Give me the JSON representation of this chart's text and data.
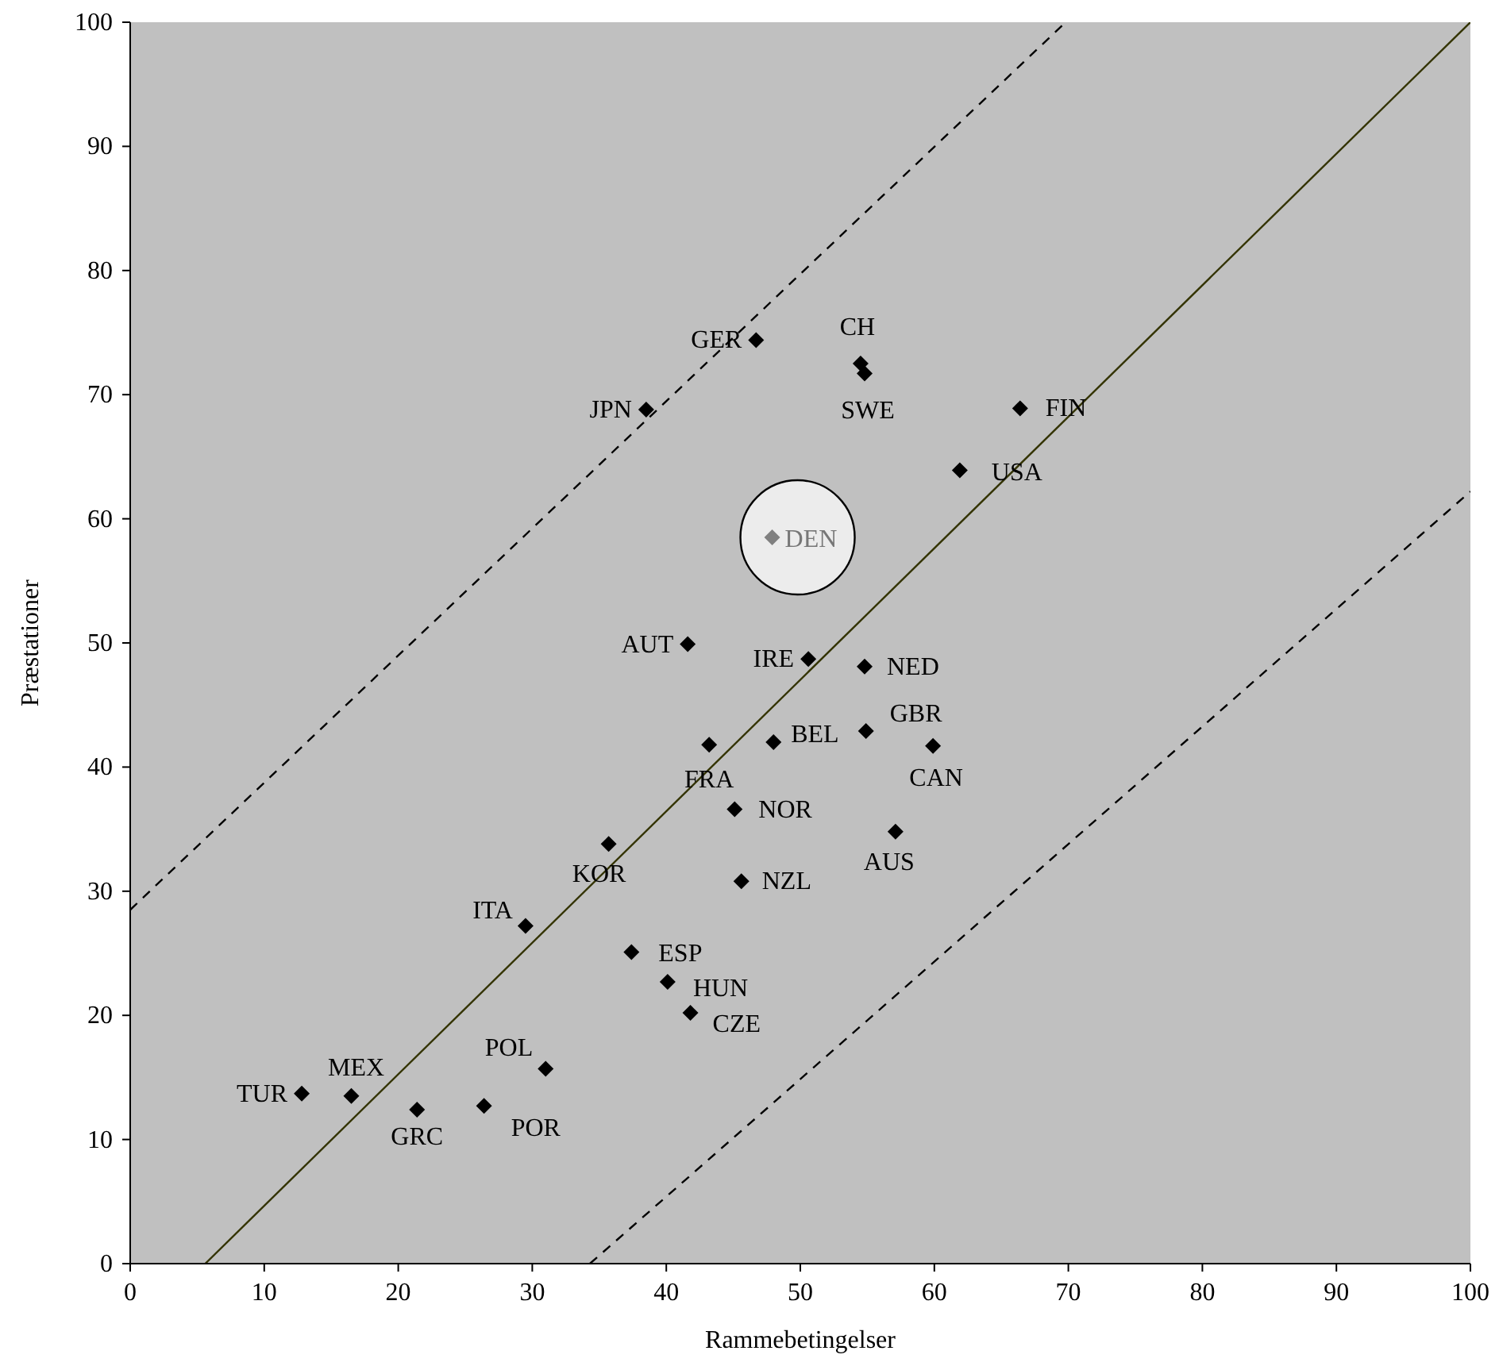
{
  "chart_data": {
    "type": "scatter",
    "xlabel": "Rammebetingelser",
    "ylabel": "Præstationer",
    "xlim": [
      0,
      100
    ],
    "ylim": [
      0,
      100
    ],
    "xticks": [
      0,
      10,
      20,
      30,
      40,
      50,
      60,
      70,
      80,
      90,
      100
    ],
    "yticks": [
      0,
      10,
      20,
      30,
      40,
      50,
      60,
      70,
      80,
      90,
      100
    ],
    "grid": false,
    "series": [
      {
        "type": "scatter",
        "color": "#000000",
        "marker": "diamond",
        "x": [
          46.7,
          54.5,
          54.8,
          38.5,
          66.4,
          61.9,
          47.9,
          41.6,
          50.6,
          54.8,
          48.0,
          54.9,
          43.2,
          59.9,
          45.1,
          57.1,
          35.7,
          45.6,
          29.5,
          37.4,
          40.1,
          41.8,
          31.0,
          12.8,
          16.5,
          21.4,
          26.4
        ],
        "values": [
          74.4,
          72.5,
          71.7,
          68.8,
          68.9,
          63.9,
          58.5,
          49.9,
          48.7,
          48.1,
          42.0,
          42.9,
          41.8,
          41.7,
          36.6,
          34.8,
          33.8,
          30.8,
          27.2,
          25.1,
          22.7,
          20.2,
          15.7,
          13.7,
          13.5,
          12.4,
          12.7
        ],
        "colors": [
          "#000000",
          "#000000",
          "#000000",
          "#000000",
          "#000000",
          "#000000",
          "#808080",
          "#000000",
          "#000000",
          "#000000",
          "#000000",
          "#000000",
          "#000000",
          "#000000",
          "#000000",
          "#000000",
          "#000000",
          "#000000",
          "#000000",
          "#000000",
          "#000000",
          "#000000",
          "#000000",
          "#000000",
          "#000000",
          "#000000",
          "#000000"
        ]
      },
      {
        "type": "line",
        "color": "#333300",
        "line_style": "solid",
        "marker": "none",
        "x": [
          5.6,
          100
        ],
        "values": [
          0,
          100
        ]
      },
      {
        "type": "line",
        "color": "#000000",
        "line_style": "dashed",
        "marker": "none",
        "x": [
          0,
          69.8
        ],
        "values": [
          28.5,
          100
        ]
      },
      {
        "type": "line",
        "color": "#000000",
        "line_style": "dashed",
        "marker": "none",
        "x": [
          34.3,
          100
        ],
        "values": [
          0,
          62.2
        ]
      }
    ],
    "annotations": [
      {
        "text": "GER",
        "x": 46.7,
        "y": 74.4
      },
      {
        "text": "CH",
        "x": 54.5,
        "y": 72.5
      },
      {
        "text": "SWE",
        "x": 54.8,
        "y": 71.7
      },
      {
        "text": "JPN",
        "x": 38.5,
        "y": 68.8
      },
      {
        "text": "FIN",
        "x": 66.4,
        "y": 68.9
      },
      {
        "text": "USA",
        "x": 61.9,
        "y": 63.9
      },
      {
        "text": "DEN",
        "x": 47.9,
        "y": 58.5
      },
      {
        "text": "AUT",
        "x": 41.6,
        "y": 49.9
      },
      {
        "text": "IRE",
        "x": 50.6,
        "y": 48.7
      },
      {
        "text": "NED",
        "x": 54.8,
        "y": 48.1
      },
      {
        "text": "BEL",
        "x": 48.0,
        "y": 42.0
      },
      {
        "text": "GBR",
        "x": 54.9,
        "y": 42.9
      },
      {
        "text": "FRA",
        "x": 43.2,
        "y": 41.8
      },
      {
        "text": "CAN",
        "x": 59.9,
        "y": 41.7
      },
      {
        "text": "NOR",
        "x": 45.1,
        "y": 36.6
      },
      {
        "text": "AUS",
        "x": 57.1,
        "y": 34.8
      },
      {
        "text": "KOR",
        "x": 35.7,
        "y": 33.8
      },
      {
        "text": "NZL",
        "x": 45.6,
        "y": 30.8
      },
      {
        "text": "ITA",
        "x": 29.5,
        "y": 27.2
      },
      {
        "text": "ESP",
        "x": 37.4,
        "y": 25.1
      },
      {
        "text": "HUN",
        "x": 40.1,
        "y": 22.7
      },
      {
        "text": "CZE",
        "x": 41.8,
        "y": 20.2
      },
      {
        "text": "POL",
        "x": 31.0,
        "y": 15.7
      },
      {
        "text": "TUR",
        "x": 12.8,
        "y": 13.7
      },
      {
        "text": "MEX",
        "x": 16.5,
        "y": 13.5
      },
      {
        "text": "GRC",
        "x": 21.4,
        "y": 12.4
      },
      {
        "text": "POR",
        "x": 26.4,
        "y": 12.7
      }
    ]
  }
}
